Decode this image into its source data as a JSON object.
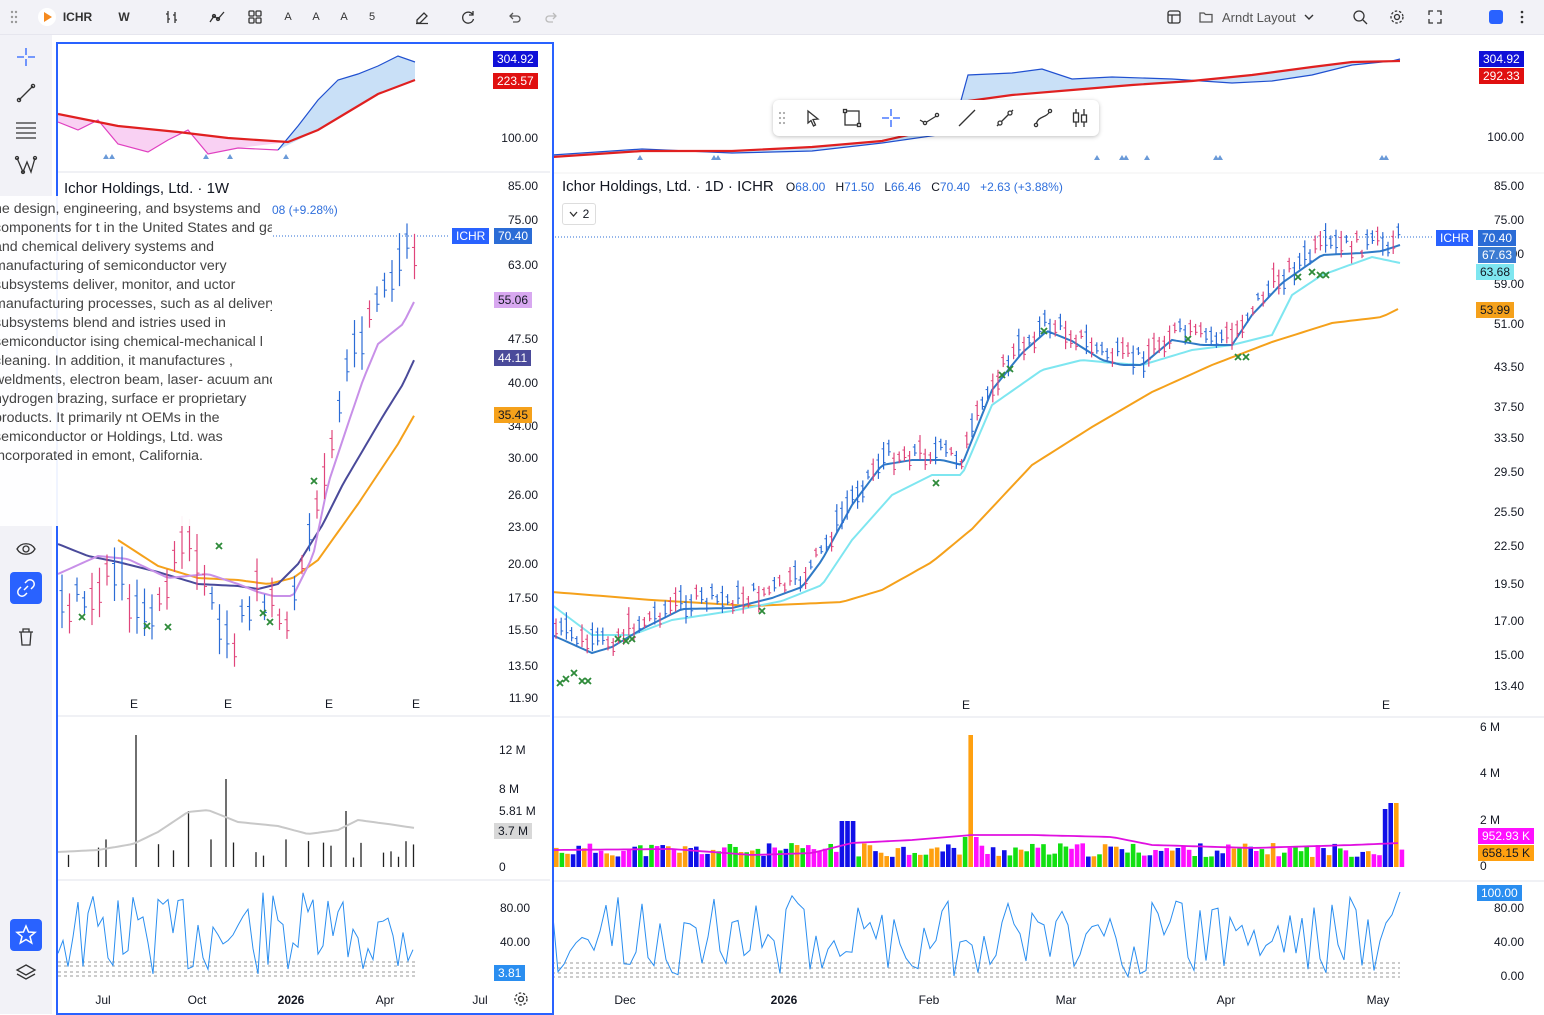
{
  "toolbar": {
    "symbol": "ICHR",
    "interval": "W",
    "text_a1": "A",
    "text_a2": "A",
    "text_a3": "A",
    "count": "5",
    "layout_name": "Arndt Layout"
  },
  "main_chart": {
    "title": "Ichor Holdings, Ltd. · 1D · ICHR",
    "o_label": "O",
    "o_value": "68.00",
    "h_label": "H",
    "h_value": "71.50",
    "l_label": "L",
    "l_value": "66.46",
    "c_label": "C",
    "c_value": "70.40",
    "change": "+2.63 (+3.88%)",
    "collapse_count": "2",
    "price_axis": [
      "85.00",
      "75.00",
      "63.00",
      "59.00",
      "51.00",
      "43.50",
      "37.50",
      "33.50",
      "29.50",
      "25.50",
      "22.50",
      "19.50",
      "17.00",
      "15.00",
      "13.40"
    ],
    "top_panel_axis": [
      "100.00"
    ],
    "top_badges": [
      "304.92",
      "292.33"
    ],
    "price_badges": {
      "symbol": "ICHR",
      "last": "70.40",
      "ma_fast": "67.63",
      "ma_mid": "63.68",
      "ma_slow": "53.99"
    },
    "volume_axis": [
      "6 M",
      "4 M",
      "2 M",
      "0"
    ],
    "volume_badges": [
      "952.93 K",
      "658.15 K"
    ],
    "osc_axis": [
      "80.00",
      "40.00",
      "0.00"
    ],
    "osc_badge": "100.00",
    "time_axis": [
      "Dec",
      "2026",
      "Feb",
      "Mar",
      "Apr",
      "May"
    ],
    "earnings_marks": [
      "E",
      "E"
    ]
  },
  "popup_chart": {
    "title": "Ichor Holdings, Ltd. · 1W",
    "change_fragment": "08 (+9.28%)",
    "price_axis": [
      "85.00",
      "75.00",
      "63.00",
      "47.50",
      "40.00",
      "34.00",
      "30.00",
      "26.00",
      "23.00",
      "20.00",
      "17.50",
      "15.50",
      "13.50",
      "11.90"
    ],
    "top_panel_axis": [
      "100.00"
    ],
    "top_badges": [
      "304.92",
      "223.57"
    ],
    "price_badges": {
      "symbol": "ICHR",
      "last": "70.40",
      "ma1": "55.06",
      "ma2": "44.11",
      "ma3": "35.45"
    },
    "volume_axis": [
      "12 M",
      "8 M",
      "5.81 M",
      "0"
    ],
    "volume_badge": "3.7 M",
    "osc_axis": [
      "80.00",
      "40.00"
    ],
    "osc_badge": "3.81",
    "time_axis": [
      "Jul",
      "Oct",
      "2026",
      "Apr",
      "Jul"
    ],
    "earnings_marks": [
      "E",
      "E",
      "E",
      "E"
    ]
  },
  "description": "he design, engineering, and bsystems and components for t in the United States and gas and chemical delivery systems and manufacturing of semiconductor very subsystems deliver, monitor, and uctor manufacturing processes, such as al delivery subsystems blend and istries used in semiconductor ising chemical-mechanical l cleaning. In addition, it manufactures , weldments, electron beam, laser- acuum and hydrogen brazing, surface er proprietary products. It primarily nt OEMs in the semiconductor or Holdings, Ltd. was incorporated in emont, California.",
  "colors": {
    "accent": "#2962ff",
    "up_bar": "#2b6cd6",
    "down_bar": "#e0457b",
    "ma_blue": "#2f7ac6",
    "ma_cyan": "#7ee6f0",
    "ma_orange": "#f5a11b",
    "ma_red": "#e02020",
    "vol_green": "#12e012",
    "vol_blue": "#1010e8",
    "vol_magenta": "#ff10ff",
    "vol_orange": "#ffa010"
  }
}
